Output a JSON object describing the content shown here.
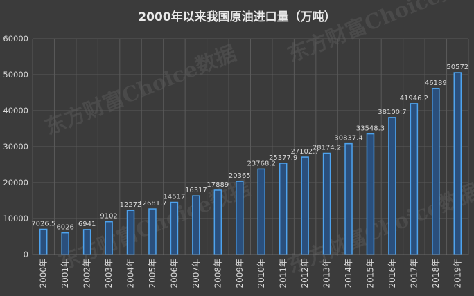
{
  "chart_data": {
    "type": "bar",
    "title": "2000年以来我国原油进口量（万吨）",
    "categories": [
      "2000年",
      "2001年",
      "2002年",
      "2003年",
      "2004年",
      "2005年",
      "2006年",
      "2007年",
      "2008年",
      "2009年",
      "2010年",
      "2011年",
      "2012年",
      "2013年",
      "2014年",
      "2015年",
      "2016年",
      "2017年",
      "2018年",
      "2019年"
    ],
    "values": [
      7026.5,
      6026,
      6941,
      9102,
      12272,
      12681.7,
      14517,
      16317,
      17889,
      20365,
      23768.2,
      25377.9,
      27102.7,
      28174.2,
      30837.4,
      33548.3,
      38100.7,
      41946.2,
      46189,
      50572
    ],
    "value_labels": [
      "7026.5",
      "6026",
      "6941",
      "9102",
      "12272",
      "12681.7",
      "14517",
      "16317",
      "17889",
      "20365",
      "23768.2",
      "25377.9",
      "27102.7",
      "28174.2",
      "30837.4",
      "33548.3",
      "38100.7",
      "41946.2",
      "46189",
      "50572"
    ],
    "yticks": [
      "0",
      "10000",
      "20000",
      "30000",
      "40000",
      "50000",
      "60000"
    ],
    "ylim": [
      0,
      60000
    ],
    "grid": true,
    "legend": "none",
    "colors": {
      "bar_fill": "#2a4f7c",
      "bar_edge": "#4ea3ee",
      "grid": "#5a5a5a",
      "text": "#d8d8d8",
      "background": "#3b3b3b"
    }
  },
  "watermark": "东方财富Choice数据"
}
